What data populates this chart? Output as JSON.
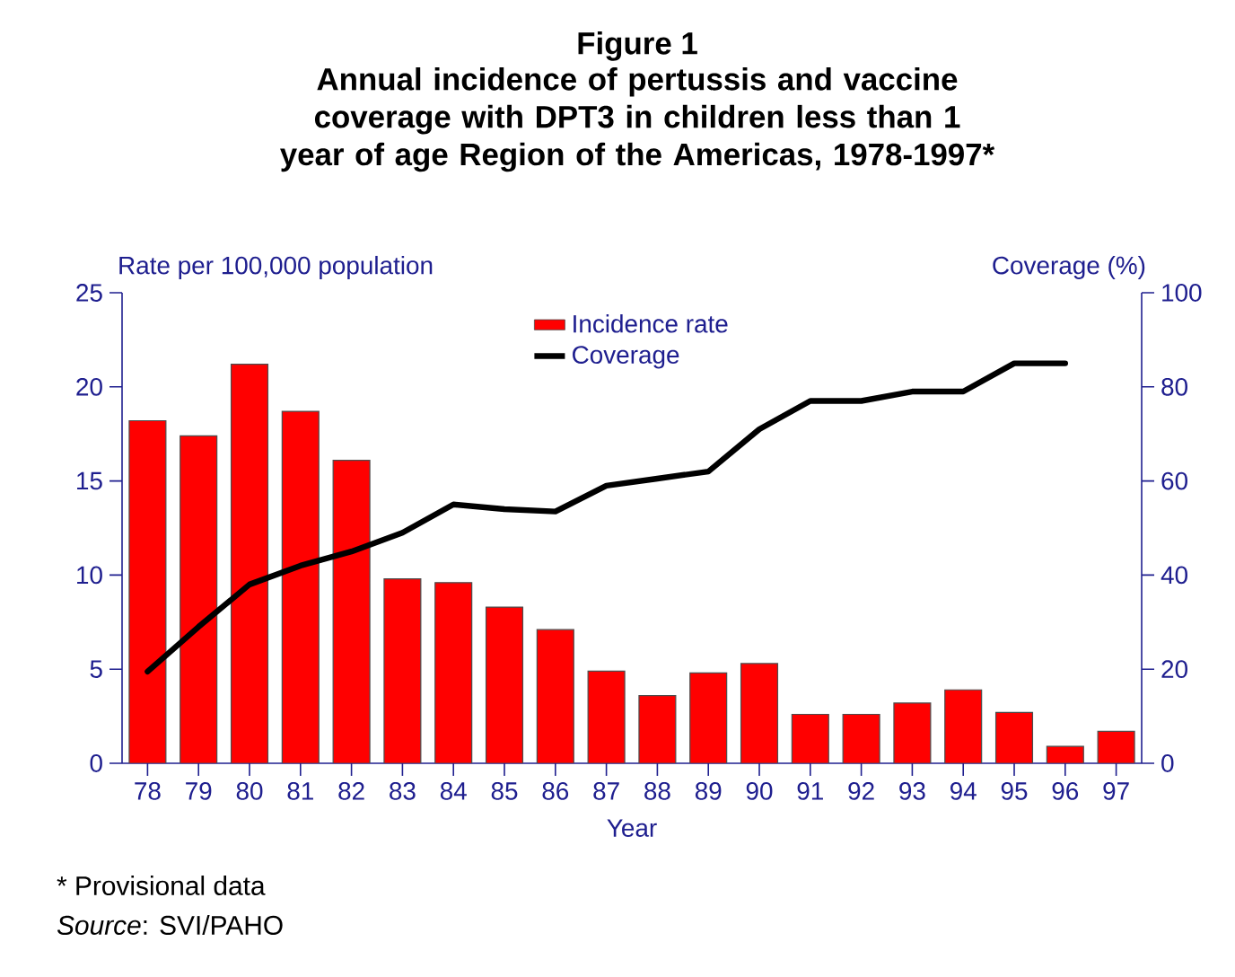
{
  "chart_data": {
    "type": "bar",
    "title": "Figure 1",
    "subtitle": "Annual incidence of pertussis  and vaccine coverage with DPT3 in children less than 1 year of age Region of the Americas, 1978-1997*",
    "xlabel": "Year",
    "ylabel": "Rate per 100,000 population",
    "y2label": "Coverage (%)",
    "categories": [
      "78",
      "79",
      "80",
      "81",
      "82",
      "83",
      "84",
      "85",
      "86",
      "87",
      "88",
      "89",
      "90",
      "91",
      "92",
      "93",
      "94",
      "95",
      "96",
      "97"
    ],
    "series": [
      {
        "name": "Incidence rate",
        "color": "#ff0000",
        "values": [
          18.2,
          17.4,
          21.2,
          18.7,
          16.1,
          9.8,
          9.6,
          8.3,
          7.1,
          4.9,
          3.6,
          4.8,
          5.3,
          2.6,
          2.6,
          3.2,
          3.9,
          2.7,
          0.9,
          1.7
        ]
      },
      {
        "name": "Coverage",
        "type": "line",
        "axis": "y2",
        "color": "#000000",
        "values": [
          19.5,
          29,
          38,
          42,
          45,
          49,
          55,
          54,
          53.5,
          59,
          60.5,
          62,
          71,
          77,
          77,
          79,
          79,
          85,
          85,
          null
        ]
      }
    ],
    "ylim": [
      0,
      25
    ],
    "yticks": [
      0,
      5,
      10,
      15,
      20,
      25
    ],
    "y2lim": [
      0,
      100
    ],
    "y2ticks": [
      0,
      20,
      40,
      60,
      80,
      100
    ],
    "legend": "top",
    "annotations": [
      "* Provisional data",
      "*Source*: SVI/PAHO"
    ]
  }
}
